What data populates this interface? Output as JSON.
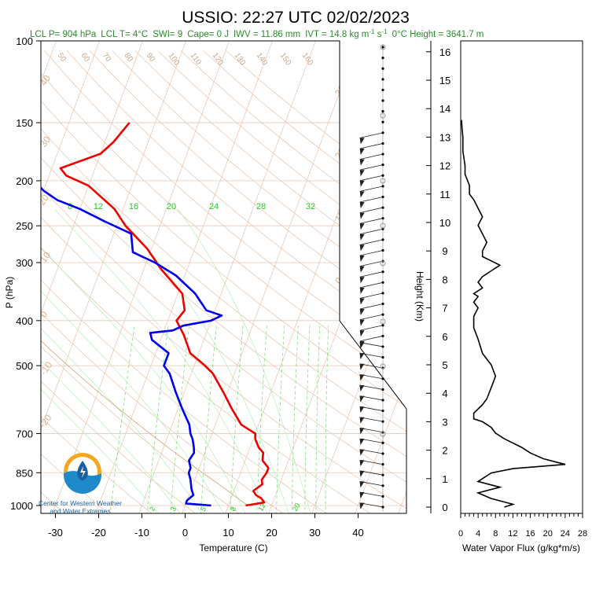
{
  "chart_data": {
    "type": "line",
    "title": "USSIO: 22:27 UTC 02/02/2023",
    "subtitle": {
      "lcl_p": "LCL P= 904 hPa",
      "lcl_t": "LCL T= 4°C",
      "swi": "SWI= 9",
      "cape": "Cape= 0 J",
      "iwv": "IWV = 11.86 mm",
      "ivt": "IVT = 14.8 kg m",
      "ivt_sup1": "-1",
      "ivt_s": " s",
      "ivt_sup2": "-1",
      "zero_c": "0°C Height = 3641.7 m"
    },
    "skewt": {
      "xlabel": "Temperature (C)",
      "ylabel": "P (hPa)",
      "ylabel_right": "Height (Km)",
      "x_ticks": [
        -30,
        -20,
        -10,
        0,
        10,
        20,
        30,
        40
      ],
      "p_ticks": [
        100,
        150,
        200,
        250,
        300,
        400,
        500,
        700,
        850,
        1000
      ],
      "height_ticks": [
        0,
        1,
        2,
        3,
        4,
        5,
        6,
        7,
        8,
        9,
        10,
        11,
        12,
        13,
        14,
        15,
        16
      ],
      "dry_adiabat_labels": [
        "50",
        "60",
        "70",
        "80",
        "90",
        "100",
        "110",
        "120",
        "130",
        "140",
        "150",
        "160"
      ],
      "isotherm_labels": [
        "40",
        "30",
        "20",
        "10",
        "0",
        "-10",
        "-20",
        "30",
        "20",
        "10",
        "0",
        "10",
        "20",
        "30"
      ],
      "mixing_ratio_labels_top": [
        "8",
        "12",
        "16",
        "20",
        "24",
        "28",
        "32"
      ],
      "mixing_ratio_labels_bottom": [
        "2",
        "3",
        "5",
        "8",
        "12",
        "20"
      ],
      "series": [
        {
          "role": "temperature",
          "color": "#ee0000",
          "p": [
            1000,
            985,
            965,
            950,
            930,
            900,
            880,
            850,
            830,
            800,
            770,
            750,
            720,
            700,
            670,
            620,
            570,
            520,
            500,
            470,
            430,
            400,
            380,
            350,
            310,
            280,
            250,
            230,
            205,
            195,
            188,
            175,
            165,
            150
          ],
          "t": [
            14,
            18,
            17,
            15.5,
            14.5,
            16,
            15.5,
            16,
            16,
            14,
            13.5,
            12,
            10.5,
            10,
            6,
            2.5,
            -1,
            -5,
            -7.5,
            -12,
            -15,
            -18,
            -17,
            -19,
            -26,
            -31,
            -38,
            -42,
            -50,
            -56,
            -58,
            -50,
            -48,
            -46
          ]
        },
        {
          "role": "dewpoint",
          "color": "#0000ee",
          "p": [
            1000,
            990,
            975,
            950,
            920,
            900,
            880,
            850,
            830,
            800,
            770,
            750,
            720,
            700,
            670,
            620,
            570,
            520,
            500,
            470,
            440,
            425,
            420,
            410,
            400,
            390,
            380,
            350,
            320,
            300,
            285,
            260,
            245,
            230,
            220,
            210,
            200,
            190,
            180,
            170,
            160,
            150
          ],
          "t": [
            6,
            0,
            0,
            1,
            0,
            -0.5,
            -1,
            -2,
            -2,
            -3,
            -2.5,
            -3,
            -4,
            -5,
            -6,
            -9,
            -12,
            -15,
            -17,
            -17,
            -22,
            -23,
            -18,
            -16,
            -10,
            -8,
            -12,
            -16,
            -22,
            -28,
            -34,
            -36,
            -43,
            -50,
            -56,
            -60,
            -63,
            -70,
            -75,
            -72,
            -74,
            -72
          ]
        }
      ]
    },
    "wind_column": {
      "label": "wind barbs",
      "count": 44
    },
    "vapor_flux": {
      "xlabel": "Water Vapor Flux (g/kg*m/s)",
      "x_ticks": [
        0,
        4,
        8,
        12,
        16,
        20,
        24,
        28
      ],
      "xlim": [
        0,
        28
      ],
      "ylim_km": [
        0,
        16.5
      ],
      "color": "#000000",
      "x": [
        10,
        12,
        7,
        4,
        9,
        4,
        5,
        7,
        12,
        24,
        19,
        16,
        14,
        10,
        8,
        7,
        5,
        3,
        3,
        5,
        6,
        7,
        8,
        7,
        5,
        4,
        3,
        3,
        4,
        3,
        4,
        3,
        5,
        4,
        5,
        7,
        9,
        5,
        5,
        6,
        5,
        4,
        5,
        4,
        3,
        2,
        2,
        1,
        1,
        0.5,
        0.5,
        0.3,
        0.2
      ],
      "z_km": [
        0,
        0.1,
        0.3,
        0.5,
        0.7,
        0.9,
        1.0,
        1.2,
        1.35,
        1.5,
        1.7,
        1.9,
        2.1,
        2.4,
        2.6,
        2.8,
        3.0,
        3.1,
        3.3,
        3.6,
        3.8,
        4.2,
        4.6,
        5.0,
        5.4,
        5.9,
        6.3,
        6.7,
        7.0,
        7.2,
        7.4,
        7.5,
        7.7,
        7.9,
        8.1,
        8.3,
        8.5,
        8.8,
        9.0,
        9.3,
        9.6,
        9.9,
        10.2,
        10.5,
        10.8,
        11.0,
        11.3,
        11.7,
        12.0,
        12.5,
        13.0,
        13.3,
        13.6
      ]
    }
  },
  "logo": {
    "line1": "Center for Western Weather",
    "line2": "and Water Extremes",
    "colors": {
      "sun": "#f5a623",
      "water": "#1f8ac9",
      "dark": "#1b5fa0"
    }
  }
}
